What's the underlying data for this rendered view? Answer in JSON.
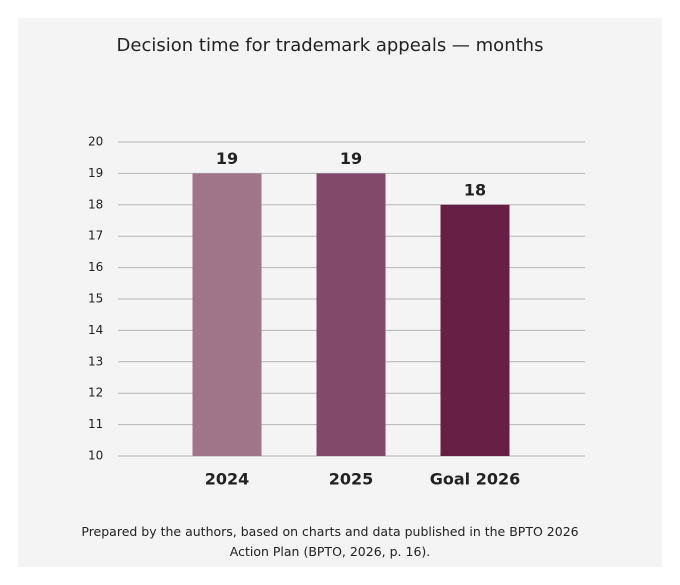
{
  "chart_data": {
    "type": "bar",
    "title": "Decision time for trademark appeals — months",
    "categories": [
      "2024",
      "2025",
      "Goal 2026"
    ],
    "values": [
      19,
      19,
      18
    ],
    "colors": [
      "#a07489",
      "#83496a",
      "#671f45"
    ],
    "ylim": [
      10,
      20
    ],
    "yticks": [
      10,
      11,
      12,
      13,
      14,
      15,
      16,
      17,
      18,
      19,
      20
    ],
    "grid": true,
    "caption": "Prepared by the authors, based on charts and data published in the BPTO 2026 Action Plan (BPTO, 2026, p. 16)."
  }
}
